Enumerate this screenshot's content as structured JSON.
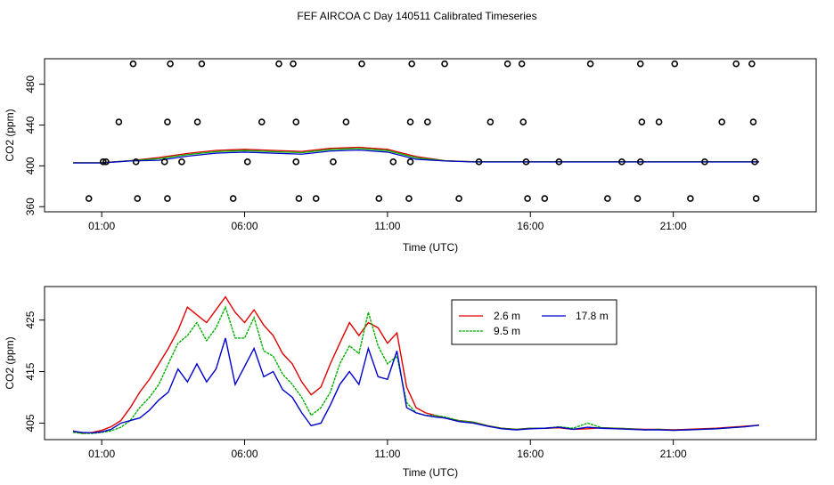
{
  "figure": {
    "title": "FEF AIRCOA C  Day 140511  Calibrated Timeseries"
  },
  "colors": {
    "series_2_6": "#e00000",
    "series_9_5": "#00b000",
    "series_17_8": "#0000cc",
    "axis": "#000000"
  },
  "chart_data": [
    {
      "type": "scatter",
      "title": "",
      "xlabel": "Time (UTC)",
      "ylabel": "CO2 (ppm)",
      "x_ticks": [
        "01:00",
        "06:00",
        "11:00",
        "16:00",
        "21:00"
      ],
      "x_tick_hours": [
        1,
        6,
        11,
        16,
        21
      ],
      "y_ticks": [
        "360",
        "400",
        "440",
        "480"
      ],
      "y_tick_values": [
        360,
        400,
        440,
        480
      ],
      "xlim": [
        -1.0,
        26.0
      ],
      "ylim": [
        355,
        505
      ],
      "reference_hours": [
        0,
        1,
        2,
        3,
        4,
        5,
        6,
        7,
        8,
        9,
        10,
        11,
        12,
        13,
        14,
        15,
        16,
        17,
        18,
        19,
        20,
        21,
        22,
        23,
        24
      ],
      "reference_values": [
        403,
        403,
        405,
        407,
        411,
        414,
        415,
        414,
        413,
        416,
        417,
        415,
        408,
        405,
        404,
        404,
        404,
        404,
        404,
        404,
        404,
        404,
        404,
        404,
        404
      ],
      "markers": [
        {
          "x": 1.05,
          "y": 404
        },
        {
          "x": 1.15,
          "y": 404
        },
        {
          "x": 0.55,
          "y": 368
        },
        {
          "x": 1.6,
          "y": 443
        },
        {
          "x": 2.1,
          "y": 500
        },
        {
          "x": 2.25,
          "y": 368
        },
        {
          "x": 2.2,
          "y": 404
        },
        {
          "x": 3.2,
          "y": 404
        },
        {
          "x": 3.3,
          "y": 443
        },
        {
          "x": 3.3,
          "y": 368
        },
        {
          "x": 3.4,
          "y": 500
        },
        {
          "x": 3.8,
          "y": 404
        },
        {
          "x": 4.35,
          "y": 443
        },
        {
          "x": 4.5,
          "y": 500
        },
        {
          "x": 5.6,
          "y": 368
        },
        {
          "x": 6.1,
          "y": 404
        },
        {
          "x": 6.6,
          "y": 443
        },
        {
          "x": 7.2,
          "y": 500
        },
        {
          "x": 7.7,
          "y": 500
        },
        {
          "x": 7.8,
          "y": 443
        },
        {
          "x": 7.9,
          "y": 368
        },
        {
          "x": 7.8,
          "y": 404
        },
        {
          "x": 8.5,
          "y": 368
        },
        {
          "x": 9.1,
          "y": 404
        },
        {
          "x": 9.55,
          "y": 443
        },
        {
          "x": 10.1,
          "y": 500
        },
        {
          "x": 10.7,
          "y": 368
        },
        {
          "x": 11.2,
          "y": 404
        },
        {
          "x": 11.8,
          "y": 404
        },
        {
          "x": 11.8,
          "y": 443
        },
        {
          "x": 11.85,
          "y": 500
        },
        {
          "x": 11.75,
          "y": 368
        },
        {
          "x": 12.4,
          "y": 443
        },
        {
          "x": 13.0,
          "y": 500
        },
        {
          "x": 13.5,
          "y": 368
        },
        {
          "x": 14.2,
          "y": 404
        },
        {
          "x": 14.6,
          "y": 443
        },
        {
          "x": 15.2,
          "y": 500
        },
        {
          "x": 15.7,
          "y": 500
        },
        {
          "x": 15.75,
          "y": 443
        },
        {
          "x": 15.85,
          "y": 404
        },
        {
          "x": 15.9,
          "y": 368
        },
        {
          "x": 16.5,
          "y": 368
        },
        {
          "x": 17.0,
          "y": 404
        },
        {
          "x": 18.1,
          "y": 500
        },
        {
          "x": 18.7,
          "y": 368
        },
        {
          "x": 19.2,
          "y": 404
        },
        {
          "x": 19.75,
          "y": 368
        },
        {
          "x": 19.85,
          "y": 404
        },
        {
          "x": 19.85,
          "y": 500
        },
        {
          "x": 19.9,
          "y": 443
        },
        {
          "x": 20.5,
          "y": 443
        },
        {
          "x": 21.05,
          "y": 500
        },
        {
          "x": 21.6,
          "y": 368
        },
        {
          "x": 22.1,
          "y": 404
        },
        {
          "x": 22.7,
          "y": 443
        },
        {
          "x": 23.2,
          "y": 500
        },
        {
          "x": 23.75,
          "y": 500
        },
        {
          "x": 23.8,
          "y": 443
        },
        {
          "x": 23.85,
          "y": 404
        },
        {
          "x": 23.9,
          "y": 368
        }
      ]
    },
    {
      "type": "line",
      "title": "",
      "xlabel": "Time (UTC)",
      "ylabel": "CO2 (ppm)",
      "x_ticks": [
        "01:00",
        "06:00",
        "11:00",
        "16:00",
        "21:00"
      ],
      "x_tick_hours": [
        1,
        6,
        11,
        16,
        21
      ],
      "y_ticks": [
        "405",
        "415",
        "425"
      ],
      "y_tick_values": [
        405,
        415,
        425
      ],
      "xlim": [
        -1.0,
        26.0
      ],
      "ylim": [
        401.8,
        431.5
      ],
      "legend": {
        "position": "top-right",
        "entries": [
          {
            "label": "2.6 m",
            "series": "series_2_6"
          },
          {
            "label": "17.8 m",
            "series": "series_17_8"
          },
          {
            "label": "9.5 m",
            "series": "series_9_5"
          }
        ]
      },
      "series": [
        {
          "name": "2.6 m",
          "key": "series_2_6",
          "x": [
            0.0,
            0.33,
            0.67,
            1.0,
            1.33,
            1.67,
            2.0,
            2.33,
            2.67,
            3.0,
            3.33,
            3.67,
            4.0,
            4.33,
            4.67,
            5.0,
            5.33,
            5.67,
            6.0,
            6.33,
            6.67,
            7.0,
            7.33,
            7.67,
            8.0,
            8.33,
            8.67,
            9.0,
            9.33,
            9.67,
            10.0,
            10.33,
            10.67,
            11.0,
            11.33,
            11.67,
            12.0,
            12.33,
            12.67,
            13.0,
            13.5,
            14.0,
            14.5,
            15.0,
            15.5,
            16.0,
            16.5,
            17.0,
            17.5,
            18.0,
            18.5,
            19.0,
            19.5,
            20.0,
            20.5,
            21.0,
            21.5,
            22.0,
            22.5,
            23.0,
            23.5,
            24.0
          ],
          "values": [
            403.5,
            403.0,
            403.2,
            403.6,
            404.3,
            405.5,
            408.0,
            411.0,
            413.5,
            416.5,
            419.5,
            423.0,
            427.5,
            426.0,
            424.5,
            427.0,
            429.5,
            426.5,
            424.5,
            427.0,
            424.0,
            422.0,
            418.5,
            416.5,
            413.0,
            410.5,
            412.0,
            416.5,
            420.5,
            424.5,
            422.0,
            424.5,
            423.5,
            420.5,
            422.5,
            412.0,
            408.0,
            407.0,
            406.5,
            406.0,
            405.5,
            405.2,
            404.5,
            404.0,
            403.8,
            404.0,
            404.0,
            404.1,
            403.8,
            403.9,
            404.1,
            404.0,
            403.9,
            403.8,
            403.8,
            403.7,
            403.8,
            403.9,
            404.0,
            404.2,
            404.4,
            404.6
          ]
        },
        {
          "name": "9.5 m",
          "key": "series_9_5",
          "x": [
            0.0,
            0.33,
            0.67,
            1.0,
            1.33,
            1.67,
            2.0,
            2.33,
            2.67,
            3.0,
            3.33,
            3.67,
            4.0,
            4.33,
            4.67,
            5.0,
            5.33,
            5.67,
            6.0,
            6.33,
            6.67,
            7.0,
            7.33,
            7.67,
            8.0,
            8.33,
            8.67,
            9.0,
            9.33,
            9.67,
            10.0,
            10.33,
            10.67,
            11.0,
            11.33,
            11.67,
            12.0,
            12.33,
            12.67,
            13.0,
            13.5,
            14.0,
            14.5,
            15.0,
            15.5,
            16.0,
            16.5,
            17.0,
            17.5,
            18.0,
            18.5,
            19.0,
            19.5,
            20.0,
            20.5,
            21.0,
            21.5,
            22.0,
            22.5,
            23.0,
            23.5,
            24.0
          ],
          "values": [
            403.2,
            403.0,
            403.0,
            403.2,
            403.5,
            404.2,
            405.5,
            408.0,
            410.0,
            412.5,
            416.5,
            420.5,
            422.0,
            424.5,
            421.0,
            423.5,
            427.5,
            421.5,
            421.5,
            425.5,
            419.0,
            418.0,
            414.5,
            412.5,
            410.0,
            406.5,
            408.0,
            411.0,
            416.5,
            420.0,
            418.5,
            426.5,
            420.0,
            416.5,
            418.0,
            409.0,
            407.0,
            406.5,
            406.5,
            406.2,
            405.5,
            405.2,
            404.5,
            404.0,
            403.8,
            404.0,
            404.0,
            404.3,
            404.0,
            405.0,
            404.1,
            404.0,
            403.9,
            403.7,
            403.8,
            403.6,
            403.7,
            403.8,
            403.9,
            404.1,
            404.3,
            404.6
          ]
        },
        {
          "name": "17.8 m",
          "key": "series_17_8",
          "x": [
            0.0,
            0.33,
            0.67,
            1.0,
            1.33,
            1.67,
            2.0,
            2.33,
            2.67,
            3.0,
            3.33,
            3.67,
            4.0,
            4.33,
            4.67,
            5.0,
            5.33,
            5.67,
            6.0,
            6.33,
            6.67,
            7.0,
            7.33,
            7.67,
            8.0,
            8.33,
            8.67,
            9.0,
            9.33,
            9.67,
            10.0,
            10.33,
            10.67,
            11.0,
            11.33,
            11.67,
            12.0,
            12.33,
            12.67,
            13.0,
            13.5,
            14.0,
            14.5,
            15.0,
            15.5,
            16.0,
            16.5,
            17.0,
            17.5,
            18.0,
            18.5,
            19.0,
            19.5,
            20.0,
            20.5,
            21.0,
            21.5,
            22.0,
            22.5,
            23.0,
            23.5,
            24.0
          ],
          "values": [
            403.4,
            403.2,
            403.1,
            403.3,
            403.8,
            405.0,
            405.5,
            406.0,
            407.5,
            409.5,
            411.0,
            415.5,
            413.0,
            416.5,
            413.0,
            415.5,
            421.5,
            412.5,
            416.0,
            419.5,
            414.0,
            415.0,
            411.5,
            410.0,
            407.0,
            404.5,
            405.0,
            408.5,
            412.5,
            415.0,
            412.5,
            419.5,
            414.0,
            413.5,
            419.0,
            408.0,
            407.0,
            406.5,
            406.2,
            406.0,
            405.3,
            405.0,
            404.4,
            403.9,
            403.7,
            403.9,
            404.0,
            404.2,
            403.8,
            404.2,
            404.0,
            403.9,
            403.8,
            403.7,
            403.7,
            403.6,
            403.7,
            403.8,
            403.9,
            404.1,
            404.3,
            404.6
          ]
        }
      ]
    }
  ]
}
